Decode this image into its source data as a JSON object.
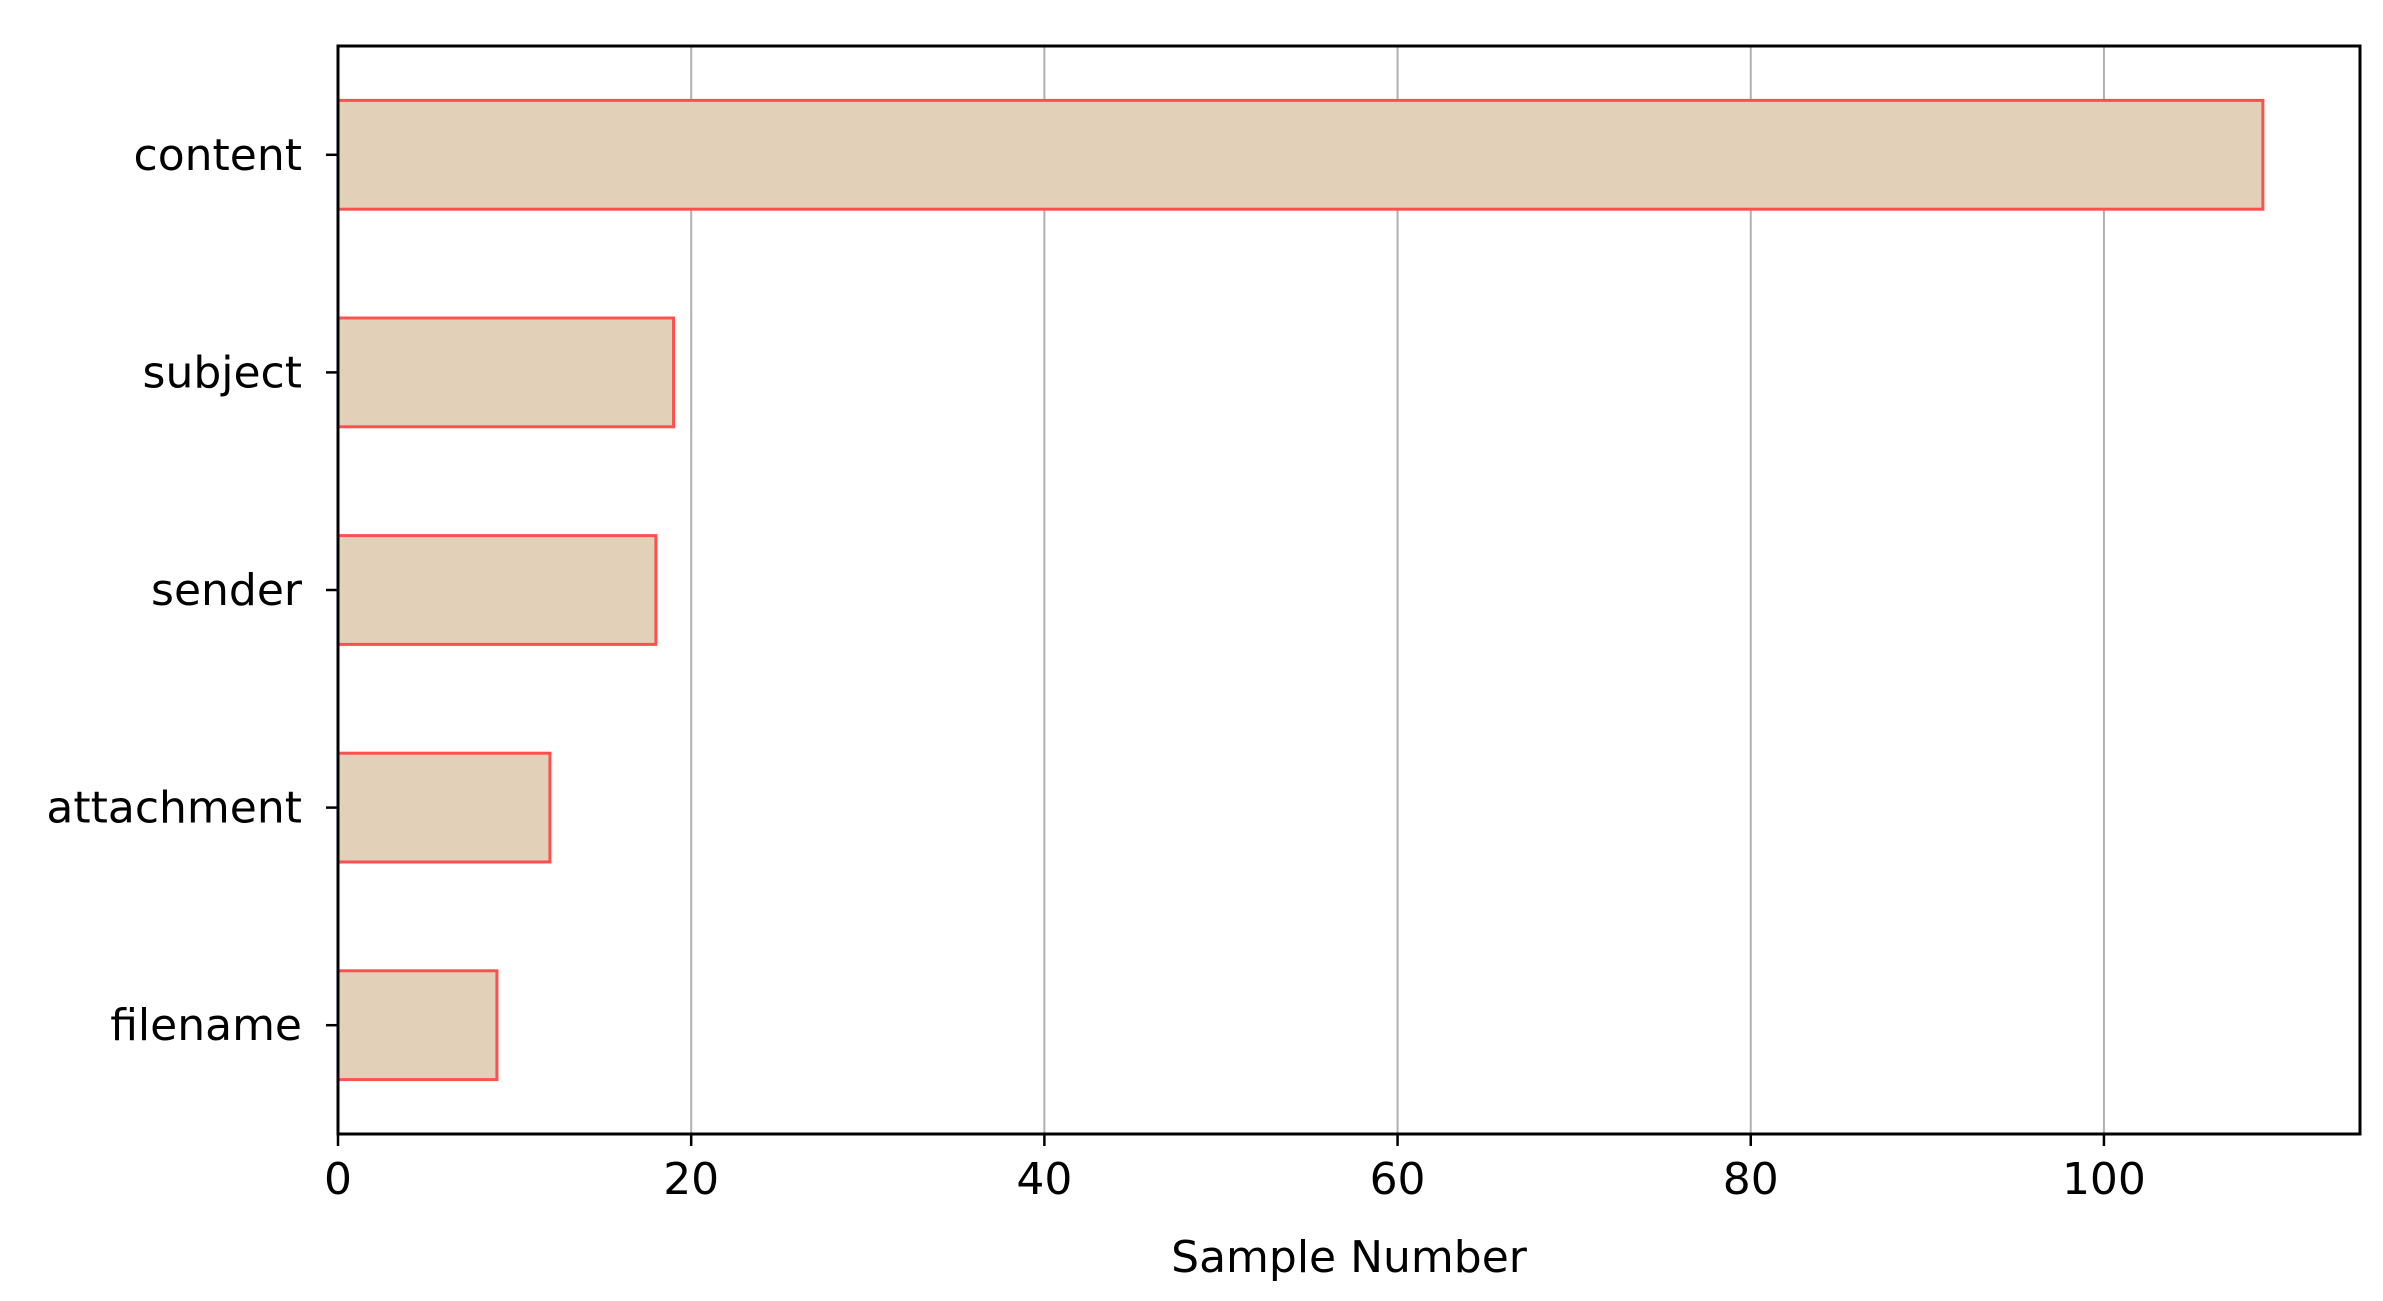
{
  "chart_data": {
    "type": "bar",
    "orientation": "horizontal",
    "categories": [
      "filename",
      "attachment",
      "sender",
      "subject",
      "content"
    ],
    "values": [
      9,
      12,
      18,
      19,
      109
    ],
    "xlabel": "Sample Number",
    "ylabel": "",
    "title": "",
    "xlim": [
      0,
      114.5
    ],
    "xticks": [
      0,
      20,
      40,
      60,
      80,
      100
    ],
    "xtick_labels": [
      "0",
      "20",
      "40",
      "60",
      "80",
      "100"
    ],
    "grid": "vertical",
    "legend": "none",
    "colors": {
      "bar_fill": "#e3d0b8",
      "bar_edge": "#ff5050",
      "grid": "#b0b0b0",
      "axis": "#000000"
    }
  }
}
